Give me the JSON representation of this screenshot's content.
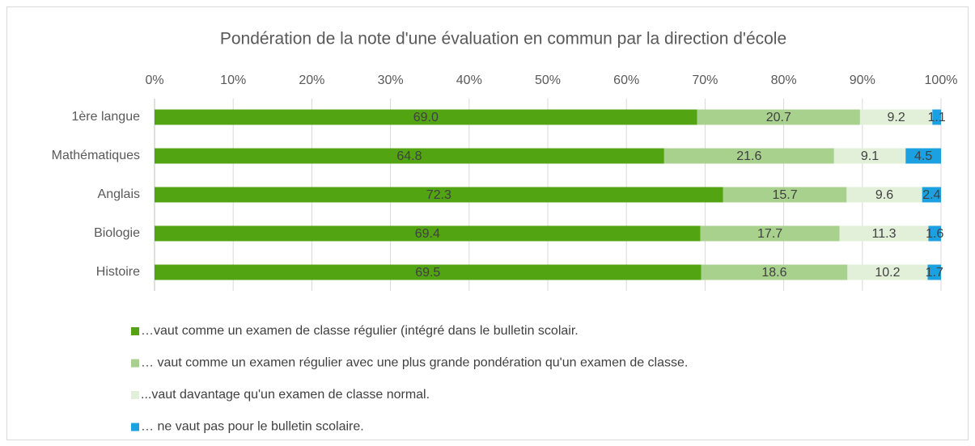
{
  "chart_data": {
    "type": "stacked_bar_horizontal",
    "title": "Pondération de la note d'une évaluation en commun par la direction d'école",
    "categories": [
      "1ère langue",
      "Mathématiques",
      "Anglais",
      "Biologie",
      "Histoire"
    ],
    "series": [
      {
        "name": "…vaut comme un examen de classe régulier (intégré dans le bulletin scolair.",
        "color": "#52a413",
        "values": [
          69.0,
          64.8,
          72.3,
          69.4,
          69.5
        ],
        "value_labels": [
          "69.0",
          "64.8",
          "72.3",
          "69.4",
          "69.5"
        ]
      },
      {
        "name": "… vaut comme un examen régulier avec une plus grande pondération qu'un examen de classe.",
        "color": "#a9d18e",
        "values": [
          20.7,
          21.6,
          15.7,
          17.7,
          18.6
        ]
      },
      {
        "name": "...vaut davantage qu'un examen de classe normal.",
        "color": "#e2f0d9",
        "values": [
          9.2,
          9.1,
          9.6,
          11.3,
          10.2
        ]
      },
      {
        "name": "… ne vaut pas pour le bulletin scolaire.",
        "color": "#1ba1e2",
        "values": [
          1.1,
          4.5,
          2.4,
          1.6,
          1.7
        ]
      }
    ],
    "xlim": [
      0,
      100
    ],
    "xticks": [
      {
        "value": 0,
        "label": "0%"
      },
      {
        "value": 10,
        "label": "10%"
      },
      {
        "value": 20,
        "label": "20%"
      },
      {
        "value": 30,
        "label": "30%"
      },
      {
        "value": 40,
        "label": "40%"
      },
      {
        "value": 50,
        "label": "50%"
      },
      {
        "value": 60,
        "label": "60%"
      },
      {
        "value": 70,
        "label": "70%"
      },
      {
        "value": 80,
        "label": "80%"
      },
      {
        "value": 90,
        "label": "90%"
      },
      {
        "value": 100,
        "label": "100%"
      }
    ],
    "grid": true
  }
}
